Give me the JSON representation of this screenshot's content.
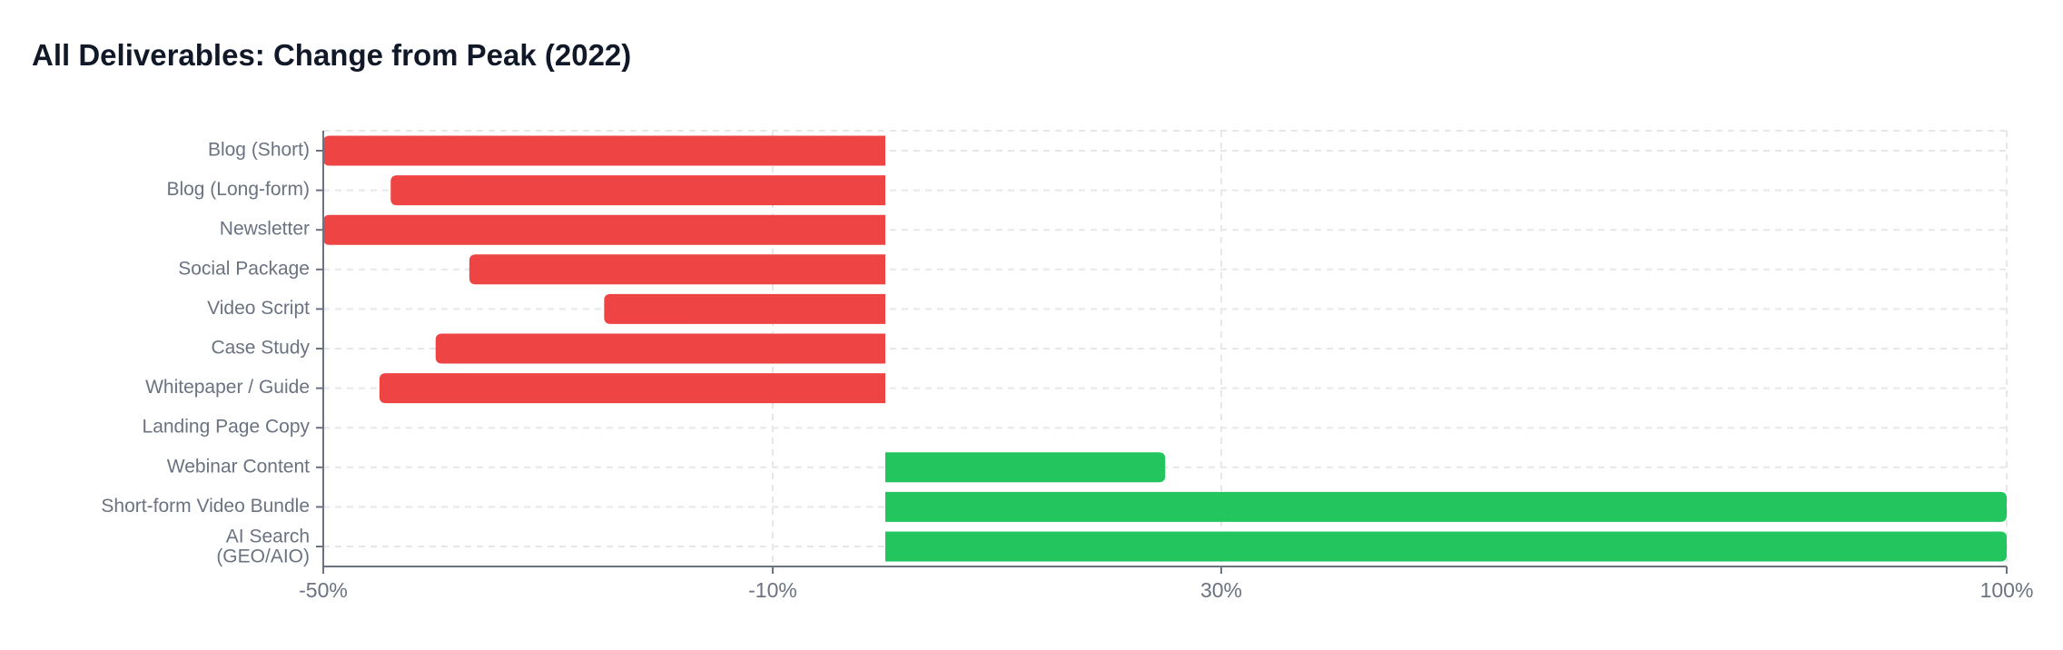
{
  "chart_data": {
    "type": "bar",
    "orientation": "horizontal",
    "title": "All Deliverables: Change from Peak (2022)",
    "xlabel": "",
    "ylabel": "",
    "categories": [
      "Blog (Short)",
      "Blog (Long-form)",
      "Newsletter",
      "Social Package",
      "Video Script",
      "Case Study",
      "Whitepaper / Guide",
      "Landing Page Copy",
      "Webinar Content",
      "Short-form Video Bundle",
      [
        "AI Search",
        "(GEO/AIO)"
      ]
    ],
    "values": [
      -50,
      -44,
      -50,
      -37,
      -25,
      -40,
      -45,
      0,
      25,
      100,
      100
    ],
    "xlim": [
      -50,
      100
    ],
    "x_ticks": [
      -50,
      -10,
      30,
      100
    ],
    "x_tick_labels": [
      "-50%",
      "-10%",
      "30%",
      "100%"
    ],
    "grid": true,
    "legend": "none",
    "colors": {
      "negative": "#ef4444",
      "positive": "#22c55e",
      "grid": "#e5e7eb",
      "axis": "#6b7280"
    }
  }
}
